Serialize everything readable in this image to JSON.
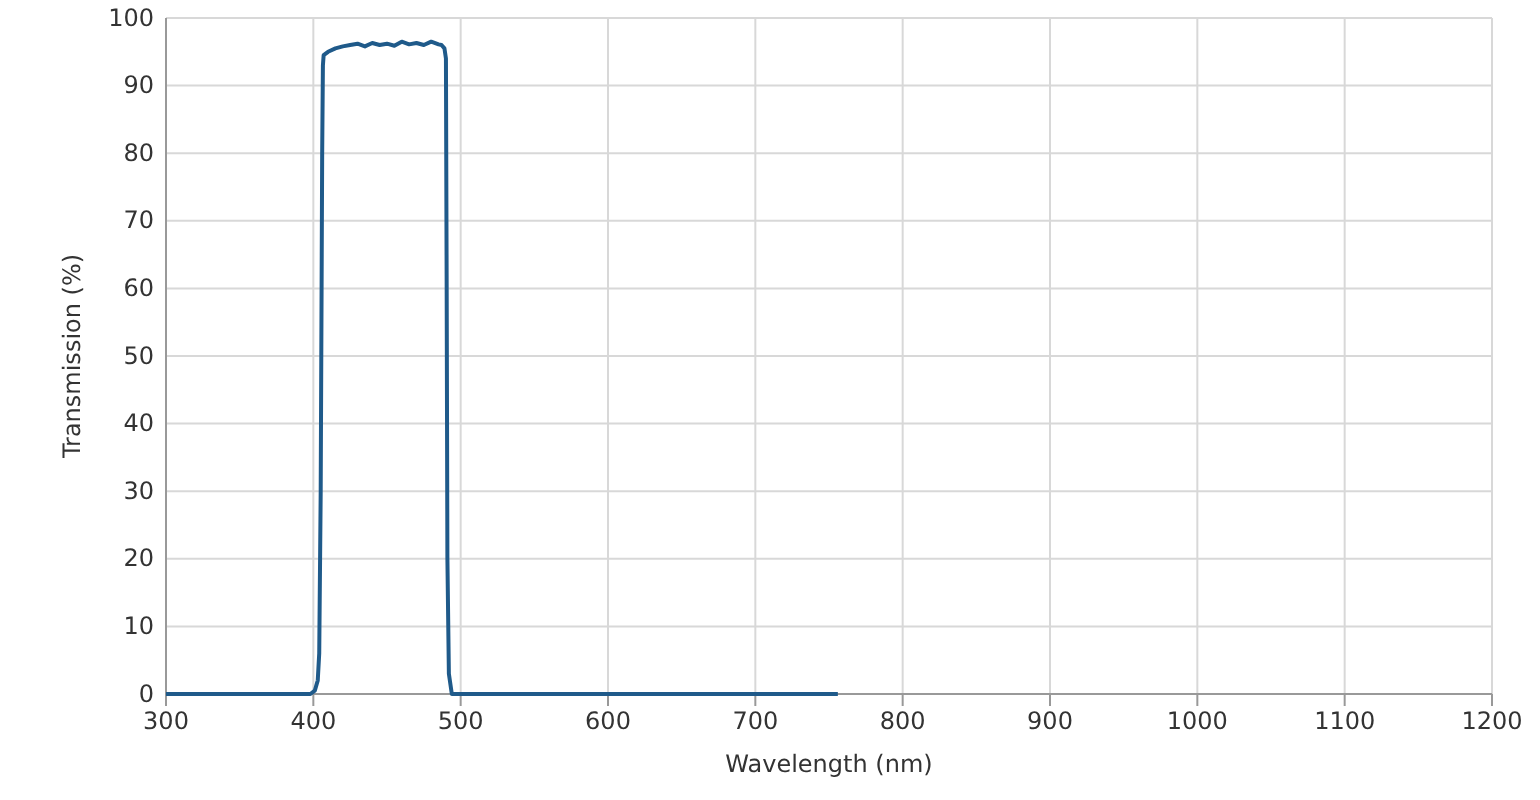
{
  "chart_data": {
    "type": "line",
    "xlabel": "Wavelength (nm)",
    "ylabel": "Transmission (%)",
    "xlim": [
      300,
      1200
    ],
    "xticks": [
      300,
      400,
      500,
      600,
      700,
      800,
      900,
      1000,
      1100,
      1200
    ],
    "ylim": [
      0,
      100
    ],
    "yticks": [
      0,
      10,
      20,
      30,
      40,
      50,
      60,
      70,
      80,
      90,
      100
    ],
    "grid": true,
    "marker": "none",
    "line_style": "solid",
    "series": [
      {
        "color": "#1f5a8a",
        "x": [
          300,
          398,
          401,
          403,
          404,
          405,
          406,
          406.5,
          407,
          410,
          415,
          420,
          425,
          430,
          435,
          440,
          445,
          450,
          455,
          460,
          465,
          470,
          475,
          480,
          485,
          487,
          489,
          490,
          490.5,
          491,
          492,
          494,
          756
        ],
        "values": [
          0,
          0,
          0.5,
          2,
          6,
          30,
          80,
          93,
          94.5,
          95,
          95.5,
          95.8,
          96,
          96.2,
          95.8,
          96.3,
          96,
          96.2,
          95.9,
          96.5,
          96.1,
          96.3,
          96,
          96.5,
          96.1,
          96,
          95.5,
          94,
          60,
          20,
          3,
          0,
          0
        ]
      }
    ]
  }
}
